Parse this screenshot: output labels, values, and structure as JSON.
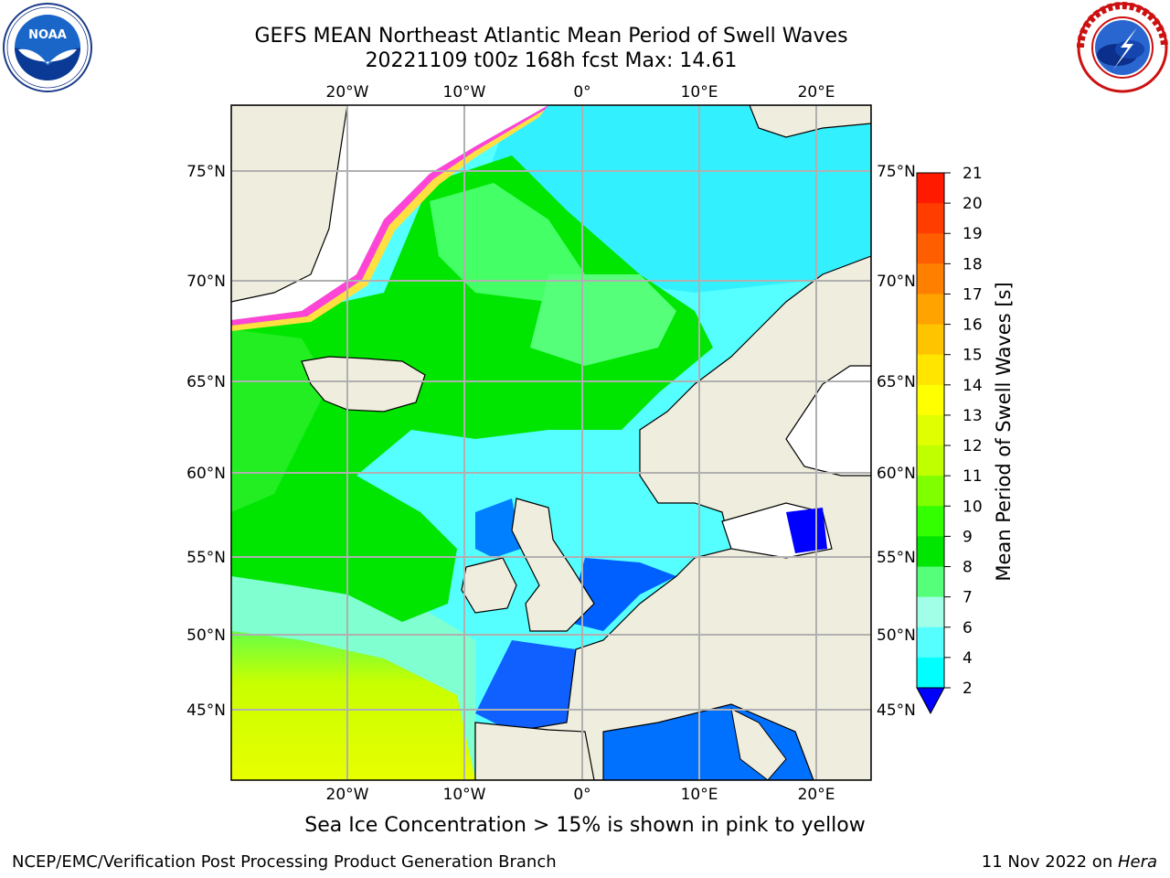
{
  "title_line1": "GEFS MEAN Northeast Atlantic Mean Period of Swell Waves",
  "title_line2": "20221109 t00z 168h fcst   Max: 14.61",
  "logos": {
    "left": {
      "icon": "noaa-logo-icon",
      "text": "NOAA"
    },
    "right": {
      "icon": "national-weather-service-logo-icon"
    }
  },
  "map": {
    "lon_ticks": [
      "20°W",
      "10°W",
      "0°",
      "10°E",
      "20°E"
    ],
    "lat_ticks": [
      "75°N",
      "70°N",
      "65°N",
      "60°N",
      "55°N",
      "50°N",
      "45°N"
    ]
  },
  "colorbar": {
    "label": "Mean Period of Swell Waves [s]",
    "ticks": [
      "21",
      "20",
      "19",
      "18",
      "17",
      "16",
      "15",
      "14",
      "13",
      "12",
      "11",
      "10",
      "9",
      "8",
      "7",
      "6",
      "4",
      "2"
    ],
    "colors": [
      "#ff1a00",
      "#ff3d00",
      "#ff5e00",
      "#ff8000",
      "#ffa300",
      "#ffc400",
      "#ffe500",
      "#ffff00",
      "#e0ff00",
      "#c0ff00",
      "#7fff00",
      "#33ff00",
      "#00e600",
      "#55ff7a",
      "#a0ffe6",
      "#55ffff",
      "#00ffff",
      "#00c8ff",
      "#0080ff",
      "#0000ff"
    ],
    "colors_order_note": "",
    "extend_color": "#0000ff"
  },
  "legend_colors": {
    "land": "#efeddd",
    "ice_white": "#ffffff",
    "ice_pink": "#ff44d6",
    "ice_yellow": "#ffe040",
    "grid": "#b0b0b0"
  },
  "caption": "Sea Ice Concentration > 15% is shown in pink to yellow",
  "footer": {
    "left": "NCEP/EMC/Verification Post Processing Product Generation Branch",
    "right_prefix": "11 Nov 2022 on ",
    "right_italic": "Hera"
  }
}
